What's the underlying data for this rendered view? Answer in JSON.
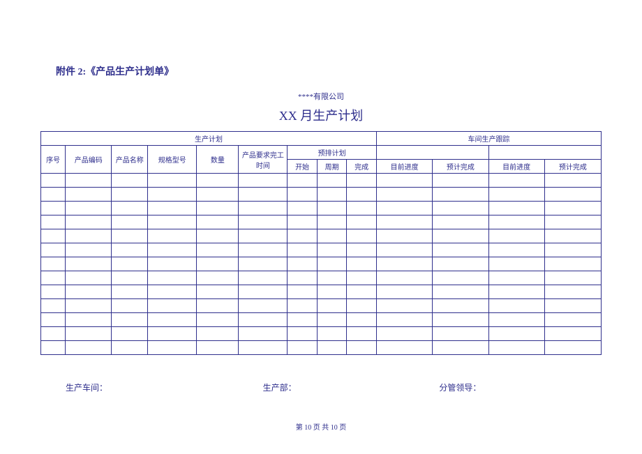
{
  "attachment_title": "附件 2:《产品生产计划单》",
  "company": "****有限公司",
  "plan_title": "XX 月生产计划",
  "header_group_plan": "生产计划",
  "header_group_track": "车间生产跟踪",
  "header_seq": "序号",
  "header_prod_code": "产品编码",
  "header_prod_name": "产品名称",
  "header_spec": "规格型号",
  "header_qty": "数量",
  "header_req_time": "产品要求完工时间",
  "header_presched": "预排计划",
  "header_start": "开始",
  "header_cycle": "周期",
  "header_finish": "完成",
  "header_progress": "目前进度",
  "header_est_done": "预计完成",
  "sig_workshop": "生产车间：",
  "sig_dept": "生产部：",
  "sig_leader": "分管领导：",
  "footer": "第 10 页 共 10 页",
  "colors": {
    "text": "#2e2e8c",
    "border": "#2e2e8c",
    "background": "#ffffff"
  },
  "table": {
    "data_row_count": 13,
    "col_count": 13,
    "col_widths_pct": [
      4.4,
      8.2,
      6.5,
      8.7,
      7.5,
      8.7,
      5.3,
      5.3,
      5.3,
      10.0,
      10.0,
      10.0,
      10.1
    ]
  }
}
